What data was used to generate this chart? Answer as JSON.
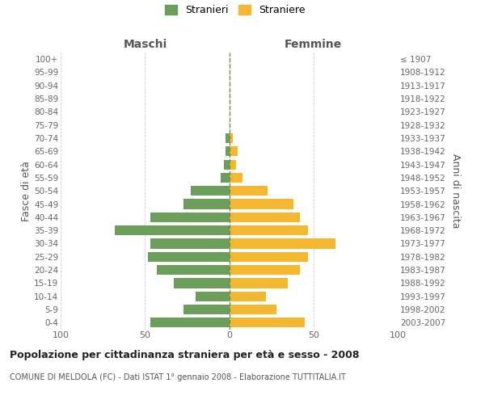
{
  "age_groups": [
    "100+",
    "95-99",
    "90-94",
    "85-89",
    "80-84",
    "75-79",
    "70-74",
    "65-69",
    "60-64",
    "55-59",
    "50-54",
    "45-49",
    "40-44",
    "35-39",
    "30-34",
    "25-29",
    "20-24",
    "15-19",
    "10-14",
    "5-9",
    "0-4"
  ],
  "birth_years": [
    "≤ 1907",
    "1908-1912",
    "1913-1917",
    "1918-1922",
    "1923-1927",
    "1928-1932",
    "1933-1937",
    "1938-1942",
    "1943-1947",
    "1948-1952",
    "1953-1957",
    "1958-1962",
    "1963-1967",
    "1968-1972",
    "1973-1977",
    "1978-1982",
    "1983-1987",
    "1988-1992",
    "1993-1997",
    "1998-2002",
    "2003-2007"
  ],
  "maschi": [
    0,
    0,
    0,
    0,
    0,
    0,
    2,
    2,
    3,
    5,
    23,
    27,
    47,
    68,
    47,
    48,
    43,
    33,
    20,
    27,
    47
  ],
  "femmine": [
    0,
    0,
    0,
    0,
    0,
    0,
    2,
    5,
    4,
    8,
    23,
    38,
    42,
    47,
    63,
    47,
    42,
    35,
    22,
    28,
    45
  ],
  "color_maschi": "#6a9e5a",
  "color_femmine": "#f5b731",
  "title": "Popolazione per cittadinanza straniera per età e sesso - 2008",
  "subtitle": "COMUNE DI MELDOLA (FC) - Dati ISTAT 1° gennaio 2008 - Elaborazione TUTTITALIA.IT",
  "ylabel_left": "Fasce di età",
  "ylabel_right": "Anni di nascita",
  "legend_maschi": "Stranieri",
  "legend_femmine": "Straniere",
  "header_left": "Maschi",
  "header_right": "Femmine",
  "xlim": 100,
  "background_color": "#ffffff",
  "grid_color": "#cccccc"
}
